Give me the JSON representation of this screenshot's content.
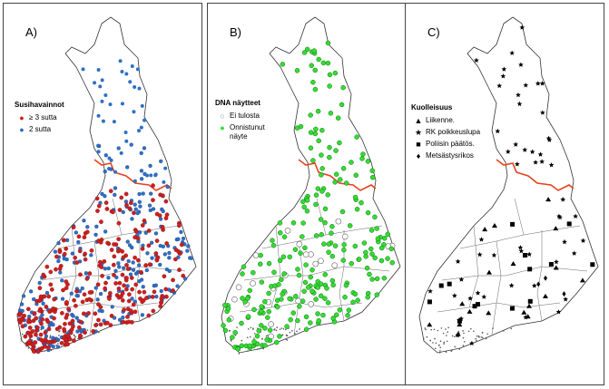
{
  "panels": [
    {
      "label": "A)",
      "legend_title": "Susihavainnot",
      "items": [
        {
          "label": "≥ 3 sutta",
          "symbol": "dot",
          "color": "#cc1f1f"
        },
        {
          "label": "2 sutta",
          "symbol": "dot",
          "color": "#2f6fc4"
        }
      ]
    },
    {
      "label": "B)",
      "legend_title": "DNA näytteet",
      "items": [
        {
          "label": "Ei tulosta",
          "symbol": "open-circle",
          "color": "#ffffff"
        },
        {
          "label": "Onnistunut näyte",
          "symbol": "dot",
          "color": "#33dd33"
        }
      ]
    },
    {
      "label": "C)",
      "legend_title": "Kuolleisuus",
      "items": [
        {
          "label": "Liikenne.",
          "symbol": "triangle",
          "color": "#000000"
        },
        {
          "label": "RK poikkeuslupa",
          "symbol": "star",
          "color": "#000000"
        },
        {
          "label": "Poliisin päätös.",
          "symbol": "square",
          "color": "#000000"
        },
        {
          "label": "Metsästysrikos",
          "symbol": "diamond",
          "color": "#000000"
        }
      ]
    }
  ],
  "colors": {
    "border_line": "#e8401c",
    "outline": "#333333"
  }
}
